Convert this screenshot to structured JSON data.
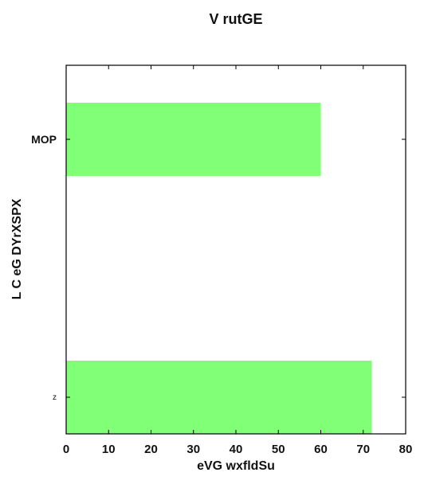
{
  "chart_data": {
    "type": "bar",
    "orientation": "horizontal",
    "title": "V rutGE",
    "xlabel": "eVG wxfldSu",
    "ylabel": "L C eG DYrXSPX",
    "categories": [
      "MOP",
      "z"
    ],
    "values": [
      60,
      72
    ],
    "xlim": [
      0,
      80
    ],
    "xticks": [
      0,
      10,
      20,
      30,
      40,
      50,
      60,
      70,
      80
    ],
    "grid": false,
    "legend": "none",
    "bar_color": "#80ff77"
  }
}
